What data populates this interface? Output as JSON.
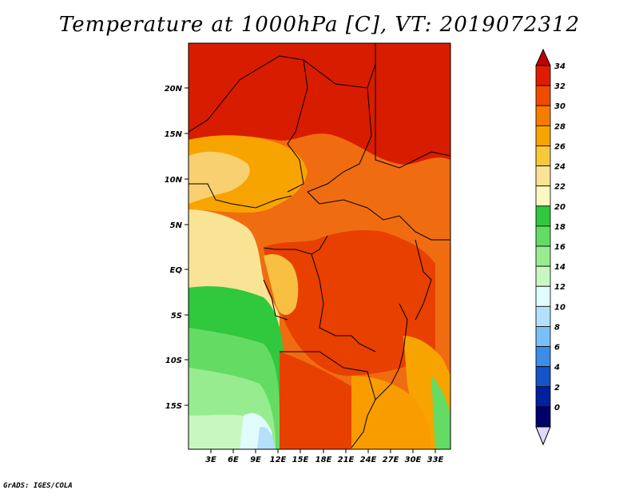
{
  "title": "Temperature at 1000hPa [C], VT: 2019072312",
  "footer": "GrADS: IGES/COLA",
  "map": {
    "lat_labels": [
      "20N",
      "15N",
      "10N",
      "5N",
      "EQ",
      "5S",
      "10S",
      "15S"
    ],
    "lon_labels": [
      "3E",
      "6E",
      "9E",
      "12E",
      "15E",
      "18E",
      "21E",
      "24E",
      "27E",
      "30E",
      "33E"
    ]
  },
  "colorbar": {
    "labels": [
      "34",
      "32",
      "30",
      "28",
      "26",
      "24",
      "22",
      "20",
      "18",
      "16",
      "14",
      "12",
      "10",
      "8",
      "6",
      "4",
      "2",
      "0"
    ],
    "colors": [
      "#c00000",
      "#e01c00",
      "#f04b00",
      "#f87c00",
      "#f8a400",
      "#f8c83c",
      "#f8e494",
      "#fcf8c0",
      "#30c83c",
      "#64dc64",
      "#98ec90",
      "#c8f8c0",
      "#e0fcfc",
      "#b4e0fc",
      "#78c0f8",
      "#3c8ce8",
      "#1454c8",
      "#0020a0",
      "#00006c",
      "#e0d8f8"
    ]
  }
}
